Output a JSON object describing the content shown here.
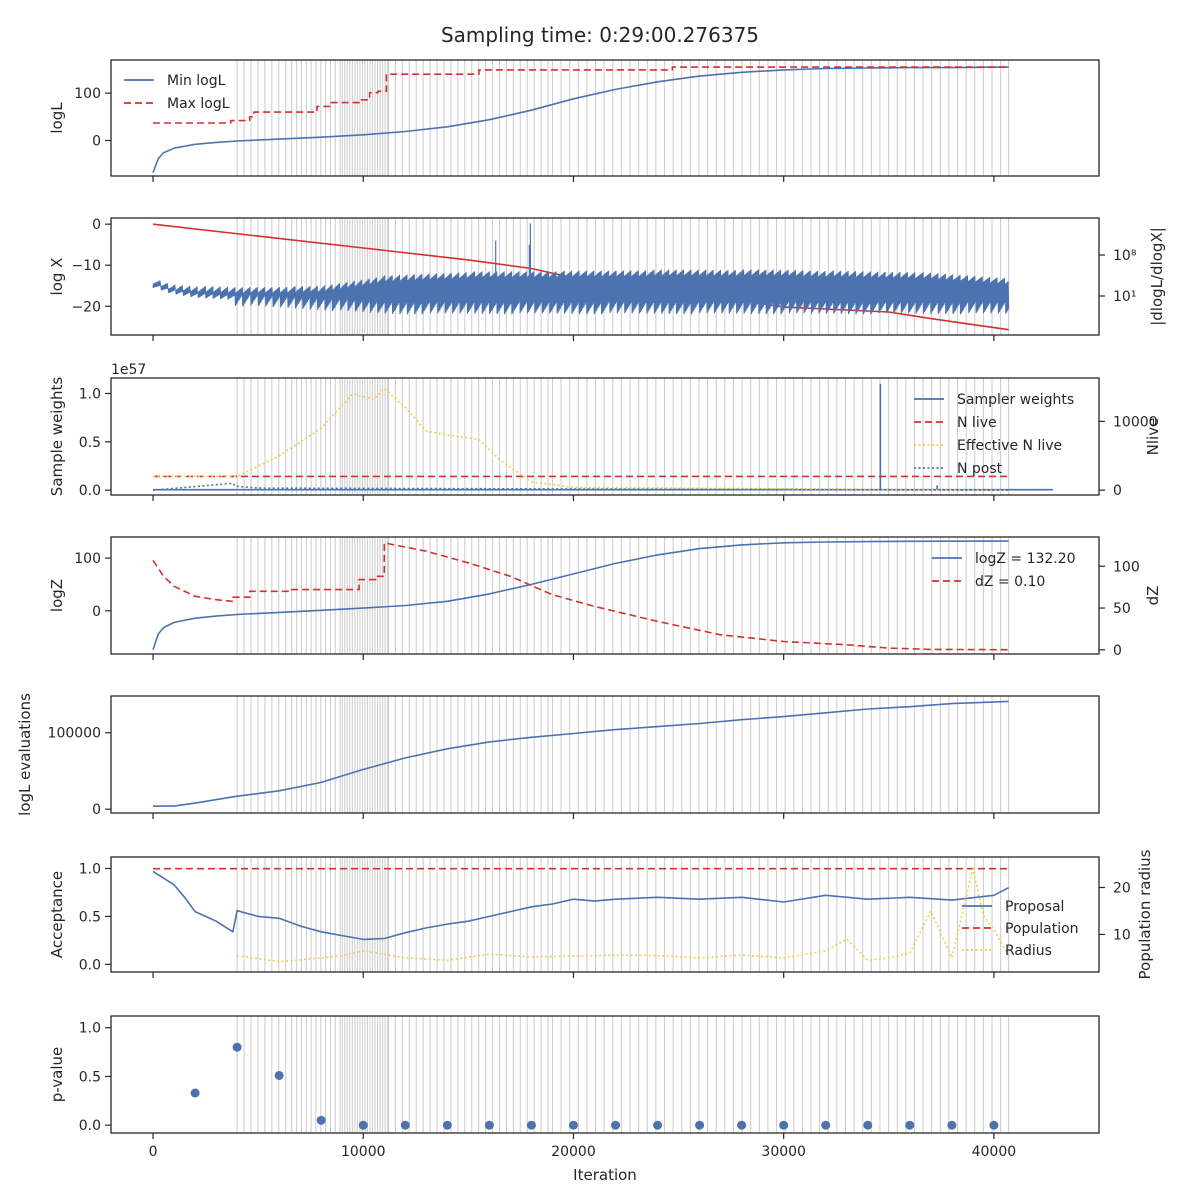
{
  "title": "Sampling time: 0:29:00.276375",
  "xlabel": "Iteration",
  "x_ticks": [
    0,
    10000,
    20000,
    30000,
    40000
  ],
  "x_range": [
    -2000,
    45000
  ],
  "colors": {
    "blue": "#4c72b0",
    "red": "#d62f2f",
    "yellow": "#f0cd4a",
    "grid_line": "#cfcfcf",
    "axis": "#262626"
  },
  "insertion_lines": {
    "description_free": true,
    "segments": [
      {
        "start": 4000,
        "end": 6600,
        "spacing": 330
      },
      {
        "start": 6600,
        "end": 9000,
        "spacing": 230
      },
      {
        "start": 9000,
        "end": 11200,
        "spacing": 120
      },
      {
        "start": 11200,
        "end": 19000,
        "spacing": 330
      },
      {
        "start": 19000,
        "end": 40700,
        "spacing": 410
      }
    ]
  },
  "chart_data": [
    {
      "id": "logl",
      "type": "line",
      "ylabel": "logL",
      "ylim": [
        -75,
        170
      ],
      "yticks": [
        0,
        100
      ],
      "legend": [
        "Min logL",
        "Max logL"
      ],
      "series": [
        {
          "name": "Min logL",
          "style": "solid",
          "color": "blue",
          "x": [
            0,
            250,
            500,
            1000,
            2000,
            3000,
            4000,
            6000,
            8000,
            10000,
            12000,
            14000,
            16000,
            18000,
            20000,
            22000,
            24000,
            26000,
            28000,
            30000,
            32000,
            34000,
            36000,
            38000,
            40700
          ],
          "y": [
            -68,
            -38,
            -26,
            -16,
            -8,
            -4,
            -1,
            3,
            7,
            12,
            19,
            29,
            44,
            64,
            88,
            108,
            124,
            136,
            144,
            149,
            152,
            153,
            154,
            154,
            155
          ]
        },
        {
          "name": "Max logL",
          "style": "dashed",
          "color": "red",
          "x": [
            0,
            3700,
            3700,
            4600,
            4600,
            4800,
            4800,
            7800,
            7800,
            8400,
            8400,
            9800,
            9800,
            10300,
            10300,
            10700,
            10700,
            11100,
            11100,
            15500,
            15500,
            24700,
            24700,
            40700
          ],
          "y": [
            37,
            37,
            42,
            42,
            50,
            50,
            60,
            60,
            72,
            72,
            80,
            80,
            86,
            86,
            101,
            101,
            104,
            104,
            140,
            140,
            149,
            149,
            155,
            155
          ]
        }
      ]
    },
    {
      "id": "logx",
      "type": "line",
      "ylabel": "log X",
      "ylabel_right": "|dlogL/dlogX|",
      "ylim": [
        -27,
        1.5
      ],
      "yticks": [
        0,
        -10,
        -20
      ],
      "yticks_right": [
        "10⁸",
        "10¹"
      ],
      "series": [
        {
          "name": "log X",
          "style": "solid",
          "color": "red",
          "x": [
            0,
            5000,
            10000,
            15000,
            18000,
            20000,
            25000,
            30000,
            35000,
            37000,
            40700
          ],
          "y": [
            0,
            -2.9,
            -5.8,
            -8.7,
            -10.8,
            -13.1,
            -16.2,
            -20.2,
            -21.4,
            -23.0,
            -25.7
          ]
        },
        {
          "name": "|dlogL/dlogX|",
          "style": "solid",
          "color": "blue",
          "band_x": [
            0,
            800,
            2000,
            4000,
            8000,
            11000,
            15000,
            20000,
            25000,
            30000,
            34600,
            36000,
            40700
          ],
          "band_top": [
            -14.5,
            -16,
            -16.5,
            -16.8,
            -16.5,
            -14,
            -13,
            -12.8,
            -12.5,
            -12.5,
            -13,
            -13,
            -14.5
          ],
          "band_bottom": [
            -17,
            -18.5,
            -19.5,
            -20,
            -21,
            -22,
            -22,
            -22,
            -22,
            -22,
            -22,
            -22,
            -22
          ],
          "spikes": [
            [
              16300,
              -4
            ],
            [
              17900,
              -5
            ],
            [
              17950,
              0.2
            ]
          ]
        }
      ]
    },
    {
      "id": "weights",
      "type": "line",
      "ylabel": "Sample weights",
      "ylabel_right": "Nlive",
      "offset_text": "1e57",
      "ylim": [
        -0.05,
        1.16
      ],
      "yticks": [
        0.0,
        0.5,
        1.0
      ],
      "yticks_right": [
        0,
        10000
      ],
      "ylim_right": [
        -700,
        16300
      ],
      "legend": [
        "Sampler weights",
        "N live",
        "Effective N live",
        "N post"
      ],
      "series": [
        {
          "name": "Sampler weights",
          "style": "solid",
          "color": "blue",
          "base": 0.005,
          "spikes": [
            [
              34600,
              1.1
            ],
            [
              37300,
              0.05
            ],
            [
              42800,
              0.0
            ]
          ]
        },
        {
          "name": "N live",
          "style": "dashed",
          "color": "red",
          "x": [
            0,
            40700
          ],
          "y": [
            2000,
            2000
          ]
        },
        {
          "name": "Effective N live",
          "style": "dotted",
          "color": "yellow",
          "x": [
            0,
            4000,
            6000,
            8000,
            9500,
            10500,
            11000,
            12000,
            13000,
            14000,
            15500,
            16500,
            18000,
            20000,
            40700
          ],
          "y": [
            2000,
            2000,
            5000,
            9000,
            14000,
            13200,
            14800,
            12000,
            8600,
            8000,
            7400,
            4400,
            1200,
            400,
            0
          ]
        },
        {
          "name": "N post",
          "style": "dotted",
          "color": "blue",
          "x": [
            0,
            3800,
            3900,
            5000,
            40700
          ],
          "y": [
            0,
            1000,
            600,
            300,
            0
          ]
        }
      ]
    },
    {
      "id": "logz",
      "type": "line",
      "ylabel": "logZ",
      "ylabel_right": "dZ",
      "ylim": [
        -82,
        140
      ],
      "yticks": [
        0,
        100
      ],
      "yticks_right": [
        0,
        50,
        100
      ],
      "ylim_right": [
        -5,
        135
      ],
      "legend": [
        "logZ = 132.20",
        "dZ = 0.10"
      ],
      "series": [
        {
          "name": "logZ = 132.20",
          "style": "solid",
          "color": "blue",
          "x": [
            0,
            250,
            500,
            1000,
            2000,
            3000,
            4000,
            6000,
            8000,
            10000,
            12000,
            14000,
            16000,
            18000,
            20000,
            22000,
            24000,
            26000,
            28000,
            30000,
            32000,
            34000,
            36000,
            38000,
            40700
          ],
          "y": [
            -74,
            -44,
            -32,
            -22,
            -14,
            -10,
            -7,
            -3,
            1,
            5,
            10,
            18,
            32,
            50,
            70,
            90,
            106,
            118,
            125,
            129,
            130.5,
            131.3,
            131.8,
            132,
            132.2
          ]
        },
        {
          "name": "dZ = 0.10",
          "style": "dashed",
          "color": "red",
          "x": [
            0,
            500,
            1000,
            2000,
            3000,
            3800,
            3800,
            4600,
            4600,
            6500,
            6500,
            9800,
            9800,
            10600,
            10600,
            11000,
            11000,
            13000,
            15000,
            17000,
            19000,
            21000,
            24000,
            27000,
            30000,
            33000,
            35000,
            37000,
            40700
          ],
          "y": [
            107,
            88,
            76,
            64,
            60,
            58,
            63,
            63,
            70,
            70,
            72,
            72,
            84,
            84,
            88,
            88,
            128,
            118,
            104,
            88,
            66,
            52,
            34,
            18,
            10,
            6,
            2,
            0.5,
            0.1
          ]
        }
      ]
    },
    {
      "id": "evals",
      "type": "line",
      "ylabel": "logL evaluations",
      "ylim": [
        -5000,
        148000
      ],
      "yticks": [
        0,
        100000
      ],
      "series": [
        {
          "name": "logL evaluations",
          "style": "solid",
          "color": "blue",
          "x": [
            0,
            1000,
            2000,
            4000,
            6000,
            8000,
            10000,
            12000,
            14000,
            16000,
            18000,
            20000,
            22000,
            24000,
            26000,
            28000,
            30000,
            32000,
            34000,
            36000,
            38000,
            40700
          ],
          "y": [
            4000,
            4000,
            8000,
            17000,
            24000,
            35000,
            52000,
            67000,
            79000,
            88000,
            94000,
            99000,
            104000,
            108000,
            112000,
            117000,
            121000,
            126000,
            131000,
            134000,
            138000,
            141000
          ]
        }
      ]
    },
    {
      "id": "acceptance",
      "type": "line",
      "ylabel": "Acceptance",
      "ylabel_right": "Population radius",
      "ylim": [
        -0.08,
        1.12
      ],
      "yticks": [
        0.0,
        0.5,
        1.0
      ],
      "yticks_right": [
        10,
        20
      ],
      "ylim_right": [
        2,
        26.5
      ],
      "legend": [
        "Proposal",
        "Population",
        "Radius"
      ],
      "series": [
        {
          "name": "Proposal",
          "style": "solid",
          "color": "blue",
          "x": [
            0,
            1000,
            1500,
            2000,
            3000,
            3800,
            4000,
            5000,
            6000,
            7000,
            8000,
            9000,
            10000,
            11000,
            12000,
            13000,
            14000,
            15000,
            16000,
            17000,
            18000,
            19000,
            20000,
            21000,
            22000,
            24000,
            26000,
            28000,
            30000,
            32000,
            34000,
            36000,
            38000,
            40000,
            40700
          ],
          "y": [
            0.97,
            0.83,
            0.7,
            0.55,
            0.45,
            0.34,
            0.56,
            0.5,
            0.48,
            0.4,
            0.34,
            0.3,
            0.26,
            0.27,
            0.33,
            0.38,
            0.42,
            0.45,
            0.5,
            0.55,
            0.6,
            0.63,
            0.68,
            0.66,
            0.68,
            0.7,
            0.68,
            0.7,
            0.65,
            0.72,
            0.68,
            0.7,
            0.67,
            0.72,
            0.8
          ]
        },
        {
          "name": "Population",
          "style": "dashed",
          "color": "red",
          "x": [
            0,
            40700
          ],
          "y": [
            24,
            24
          ]
        },
        {
          "name": "Radius",
          "style": "dotted",
          "color": "yellow",
          "x": [
            4000,
            6000,
            8000,
            9000,
            10000,
            12000,
            14000,
            16000,
            18000,
            20000,
            22000,
            24000,
            26000,
            28000,
            30000,
            32000,
            33000,
            34000,
            35000,
            36000,
            37000,
            38000,
            39000,
            39500,
            40000,
            40700
          ],
          "y": [
            5.5,
            4.2,
            5,
            5.5,
            6.5,
            5,
            4.5,
            5.8,
            5.2,
            5.4,
            5.6,
            5.5,
            5,
            5.6,
            5,
            6.5,
            9,
            4.5,
            5,
            6,
            15,
            5,
            24,
            14,
            11,
            5.5
          ]
        }
      ]
    },
    {
      "id": "pvalue",
      "type": "scatter",
      "ylabel": "p-value",
      "ylim": [
        -0.08,
        1.12
      ],
      "yticks": [
        0.0,
        0.5,
        1.0
      ],
      "series": [
        {
          "name": "p-value",
          "color": "blue",
          "x": [
            2000,
            4000,
            6000,
            8000,
            10000,
            12000,
            14000,
            16000,
            18000,
            20000,
            22000,
            24000,
            26000,
            28000,
            30000,
            32000,
            34000,
            36000,
            38000,
            40000
          ],
          "y": [
            0.33,
            0.8,
            0.51,
            0.05,
            0,
            0,
            0,
            0,
            0,
            0,
            0,
            0,
            0,
            0,
            0,
            0,
            0,
            0,
            0,
            0
          ]
        }
      ]
    }
  ]
}
